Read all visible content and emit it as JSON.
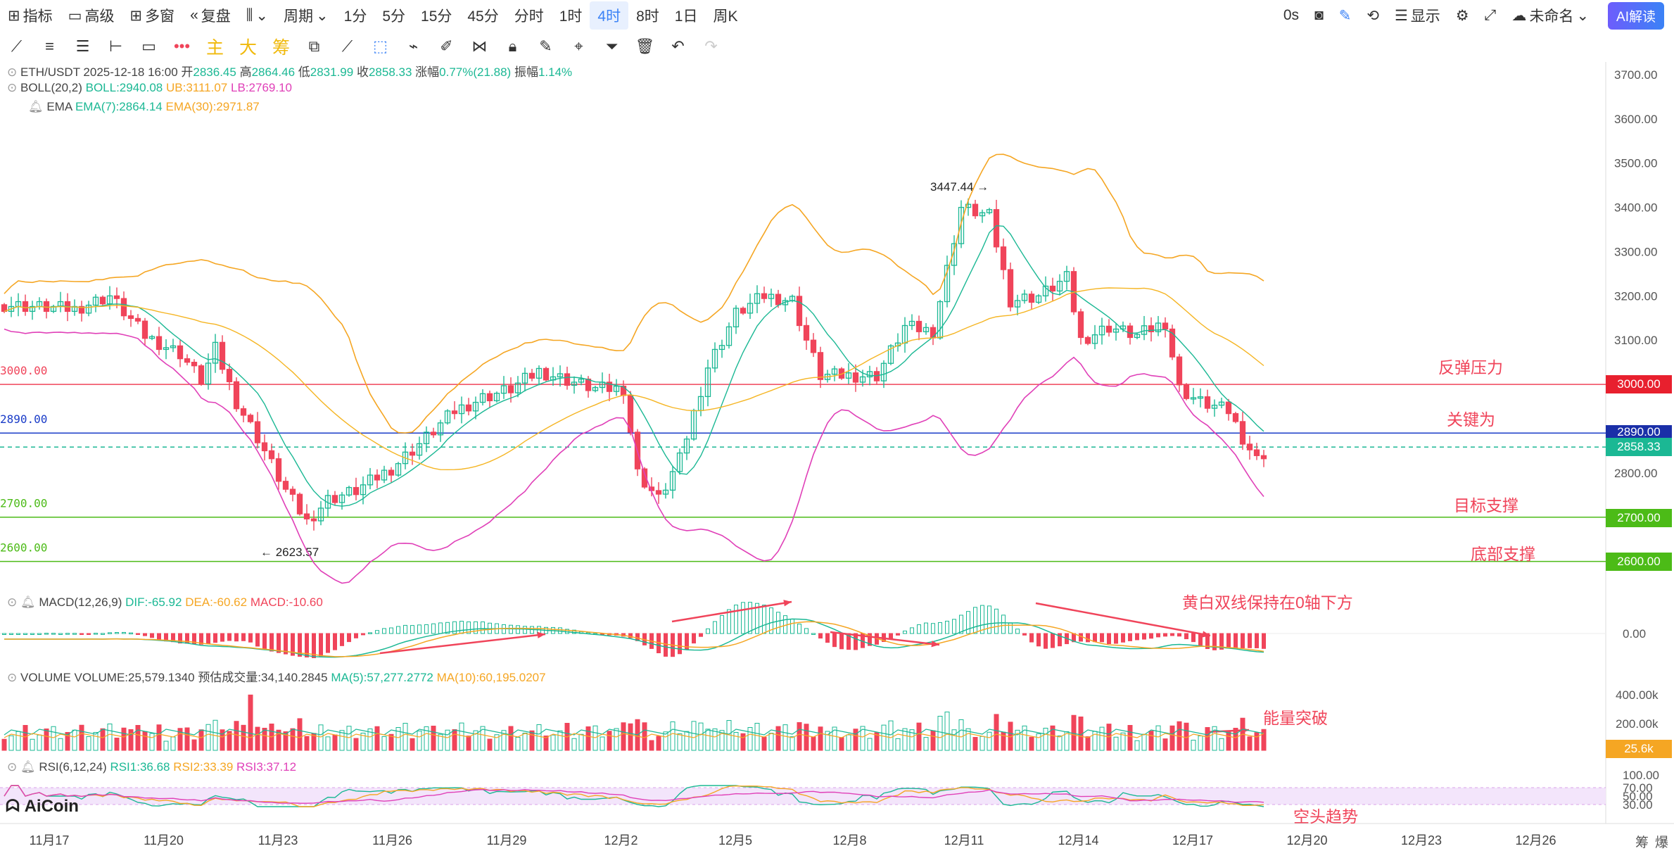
{
  "topbar": {
    "indicators": "指标",
    "advanced": "高级",
    "multi_window": "多窗",
    "replay": "复盘",
    "period": "周期",
    "periods": [
      "1分",
      "5分",
      "15分",
      "45分",
      "分时",
      "1时",
      "4时",
      "8时",
      "1日",
      "周K"
    ],
    "active_period": "4时",
    "latency": "0s",
    "display": "显示",
    "unnamed": "未命名",
    "ai": "AI解读"
  },
  "toolbar": {
    "main": "主",
    "big": "大",
    "chip": "筹"
  },
  "header": {
    "symbol": "ETH/USDT",
    "datetime": "2025-12-18 16:00",
    "open_label": "开",
    "open": "2836.45",
    "high_label": "高",
    "high": "2864.46",
    "low_label": "低",
    "low": "2831.99",
    "close_label": "收",
    "close": "2858.33",
    "change_label": "涨幅",
    "change": "0.77%(21.88)",
    "amp_label": "振幅",
    "amp": "1.14%"
  },
  "boll": {
    "name": "BOLL(20,2)",
    "mid": "BOLL:2940.08",
    "ub": "UB:3111.07",
    "lb": "LB:2769.10"
  },
  "ema": {
    "name": "EMA",
    "ema7": "EMA(7):2864.14",
    "ema30": "EMA(30):2971.87"
  },
  "macd": {
    "name": "MACD(12,26,9)",
    "dif": "DIF:-65.92",
    "dea": "DEA:-60.62",
    "macd": "MACD:-10.60",
    "zero": "0.00"
  },
  "volume": {
    "name": "VOLUME",
    "vol": "VOLUME:25,579.1340",
    "est": "预估成交量:34,140.2845",
    "ma5": "MA(5):57,277.2772",
    "ma10": "MA(10):60,195.0207",
    "ticks": [
      "400.00k",
      "200.00k"
    ],
    "current": "25.6k"
  },
  "rsi": {
    "name": "RSI(6,12,24)",
    "rsi1": "RSI1:36.68",
    "rsi2": "RSI2:33.39",
    "rsi3": "RSI3:37.12",
    "ticks": [
      "100.00",
      "70.00",
      "50.00",
      "30.00"
    ]
  },
  "price_axis": [
    "3700.00",
    "3600.00",
    "3500.00",
    "3400.00",
    "3300.00",
    "3200.00",
    "3100.00",
    "2800.00"
  ],
  "price_tags": {
    "p3000": "3000.00",
    "p2890": "2890.00",
    "current": "2858.33",
    "p2700": "2700.00",
    "p2600": "2600.00"
  },
  "left_levels": {
    "l3000": "3000.00",
    "l2890": "2890.00",
    "l2700": "2700.00",
    "l2600": "2600.00"
  },
  "annotations": {
    "resistance": "反弹压力",
    "key": "关键为",
    "target_support": "目标支撑",
    "bottom_support": "底部支撑",
    "macd_note": "黄白双线保持在0轴下方",
    "volume_note": "能量突破",
    "rsi_note": "空头趋势",
    "high_mark": "3447.44",
    "low_mark": "2623.57"
  },
  "dates": [
    "11月17",
    "11月20",
    "11月23",
    "11月26",
    "11月29",
    "12月2",
    "12月5",
    "12月8",
    "12月11",
    "12月14",
    "12月17",
    "12月20",
    "12月23",
    "12月26"
  ],
  "corner": [
    "筹",
    "爆"
  ],
  "brand": "AiCoin",
  "colors": {
    "up": "#1bb894",
    "down": "#f0445a",
    "boll_mid": "#1bb894",
    "boll_ub": "#f5a623",
    "boll_lb": "#e040b8",
    "resist": "#f0445a",
    "key": "#1a3cc8",
    "support": "#4cbb17"
  }
}
